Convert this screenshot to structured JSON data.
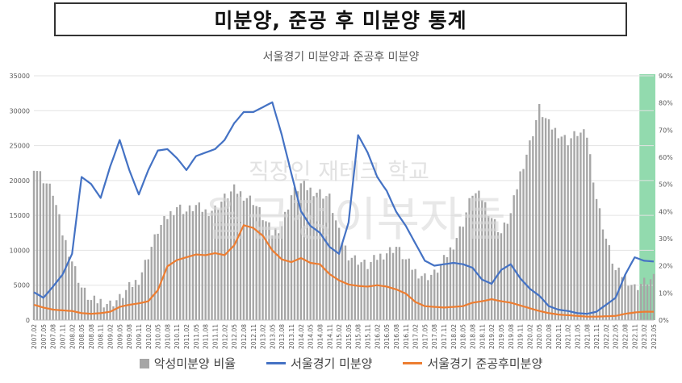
{
  "header": {
    "title": "미분양, 준공 후 미분양 통계"
  },
  "chart_data": {
    "type": "bar+line",
    "title": "서울경기 미분양과 준공후 미분양",
    "y_left": {
      "min": 0,
      "max": 35000,
      "ticks": [
        "0",
        "5000",
        "10000",
        "15000",
        "20000",
        "25000",
        "30000",
        "35000"
      ]
    },
    "y_right": {
      "min": 0,
      "max": 0.9,
      "ticks": [
        "0%",
        "10%",
        "20%",
        "30%",
        "40%",
        "50%",
        "60%",
        "70%",
        "80%",
        "90%"
      ]
    },
    "x_labels": [
      "2007.02",
      "2007.05",
      "2007.08",
      "2007.11",
      "2008.02",
      "2008.05",
      "2008.08",
      "2008.11",
      "2009.02",
      "2009.05",
      "2009.08",
      "2009.11",
      "2010.02",
      "2010.05",
      "2010.08",
      "2010.11",
      "2011.02",
      "2011.05",
      "2011.08",
      "2011.11",
      "2012.02",
      "2012.05",
      "2012.08",
      "2012.11",
      "2013.02",
      "2013.05",
      "2013.08",
      "2013.11",
      "2014.02",
      "2014.05",
      "2014.08",
      "2014.11",
      "2015.02",
      "2015.05",
      "2015.08",
      "2015.11",
      "2016.02",
      "2016.05",
      "2016.08",
      "2016.11",
      "2017.02",
      "2017.05",
      "2017.08",
      "2017.11",
      "2018.02",
      "2018.05",
      "2018.08",
      "2018.11",
      "2019.02",
      "2019.05",
      "2019.08",
      "2019.11",
      "2020.02",
      "2020.05",
      "2020.08",
      "2020.11",
      "2021.02",
      "2021.05",
      "2021.08",
      "2021.11",
      "2022.02",
      "2022.05",
      "2022.08",
      "2022.11",
      "2023.02",
      "2023.05"
    ],
    "highlight": {
      "start": "2023.01",
      "end": "2023.05",
      "color": "#7fd4a0"
    },
    "series": [
      {
        "name": "악성미분양 비율",
        "type": "bar",
        "axis": "right",
        "color": "#a6a6a6",
        "key_values": [
          0.57,
          0.52,
          0.47,
          0.32,
          0.22,
          0.12,
          0.07,
          0.07,
          0.06,
          0.08,
          0.12,
          0.15,
          0.24,
          0.33,
          0.38,
          0.42,
          0.4,
          0.42,
          0.4,
          0.41,
          0.45,
          0.48,
          0.46,
          0.44,
          0.38,
          0.32,
          0.35,
          0.46,
          0.5,
          0.48,
          0.47,
          0.45,
          0.32,
          0.24,
          0.22,
          0.2,
          0.23,
          0.25,
          0.27,
          0.22,
          0.18,
          0.16,
          0.17,
          0.22,
          0.28,
          0.36,
          0.47,
          0.45,
          0.38,
          0.32,
          0.39,
          0.54,
          0.65,
          0.78,
          0.72,
          0.69,
          0.66,
          0.69,
          0.68,
          0.45,
          0.3,
          0.18,
          0.16,
          0.12,
          0.14,
          0.15
        ]
      },
      {
        "name": "서울경기 미분양",
        "type": "line",
        "axis": "left",
        "color": "#4472c4",
        "key_values": [
          4000,
          3200,
          4800,
          6500,
          9500,
          20500,
          19500,
          17500,
          22000,
          25800,
          21500,
          18000,
          21500,
          24300,
          24500,
          23200,
          21500,
          23500,
          24000,
          24500,
          25800,
          28200,
          29800,
          29800,
          30500,
          31200,
          26500,
          21000,
          15600,
          13500,
          12500,
          10500,
          9500,
          14000,
          26500,
          24000,
          20500,
          18500,
          15500,
          13500,
          11000,
          8500,
          7800,
          8000,
          8200,
          8000,
          7500,
          5800,
          5200,
          7200,
          8000,
          6000,
          4500,
          3500,
          2000,
          1500,
          1300,
          1000,
          900,
          1200,
          2200,
          3200,
          6500,
          9000,
          8500,
          8400
        ]
      },
      {
        "name": "서울경기 준공후미분양",
        "type": "line",
        "axis": "left",
        "color": "#ed7d31",
        "key_values": [
          2200,
          1800,
          1500,
          1400,
          1300,
          1000,
          900,
          1000,
          1200,
          1900,
          2200,
          2400,
          2700,
          4300,
          7700,
          8600,
          9000,
          9400,
          9300,
          9600,
          9300,
          10700,
          13600,
          13200,
          12100,
          10000,
          8700,
          8300,
          8900,
          8200,
          8000,
          6600,
          5700,
          5100,
          4900,
          4800,
          5000,
          4800,
          4400,
          3800,
          2600,
          2000,
          1900,
          1800,
          1900,
          2000,
          2500,
          2700,
          3000,
          2700,
          2500,
          2100,
          1700,
          1300,
          1000,
          800,
          700,
          600,
          500,
          500,
          550,
          600,
          900,
          1100,
          1200,
          1200
        ]
      }
    ],
    "legend": [
      "악성미분양 비율",
      "서울경기 미분양",
      "서울경기 준공후미분양"
    ],
    "legend_position": "bottom"
  },
  "watermark": {
    "line1": "직장인 재테크 학교",
    "line2": "월급쟁이부자들"
  }
}
